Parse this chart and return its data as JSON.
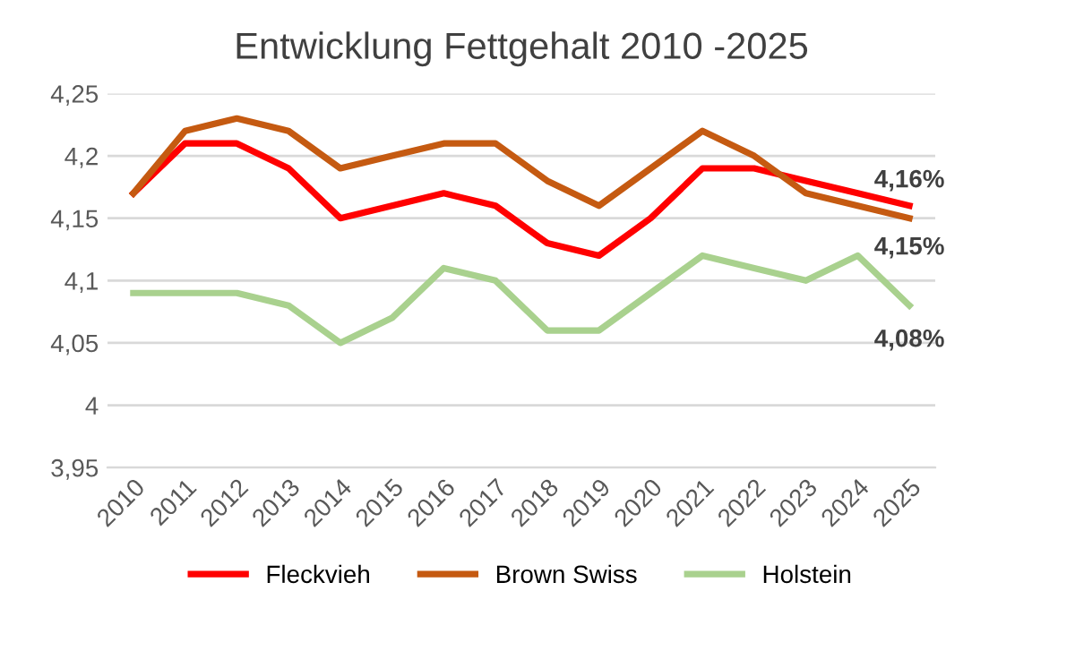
{
  "chart_data": {
    "type": "line",
    "title": "Entwicklung Fettgehalt 2010 -2025",
    "categories": [
      "2010",
      "2011",
      "2012",
      "2013",
      "2014",
      "2015",
      "2016",
      "2017",
      "2018",
      "2019",
      "2020",
      "2021",
      "2022",
      "2023",
      "2024",
      "2025"
    ],
    "series": [
      {
        "name": "Fleckvieh",
        "color": "#ff0000",
        "values": [
          4.17,
          4.21,
          4.21,
          4.19,
          4.15,
          4.16,
          4.17,
          4.16,
          4.13,
          4.12,
          4.15,
          4.19,
          4.19,
          4.18,
          4.17,
          4.16
        ]
      },
      {
        "name": "Brown Swiss",
        "color": "#c55a11",
        "values": [
          4.17,
          4.22,
          4.23,
          4.22,
          4.19,
          4.2,
          4.21,
          4.21,
          4.18,
          4.16,
          4.19,
          4.22,
          4.2,
          4.17,
          4.16,
          4.15
        ]
      },
      {
        "name": "Holstein",
        "color": "#a9d18e",
        "values": [
          4.09,
          4.09,
          4.09,
          4.08,
          4.05,
          4.07,
          4.11,
          4.1,
          4.06,
          4.06,
          4.09,
          4.12,
          4.11,
          4.1,
          4.12,
          4.08
        ]
      }
    ],
    "ylim": [
      3.95,
      4.25
    ],
    "yticks": [
      {
        "value": 3.95,
        "label": "3,95"
      },
      {
        "value": 4,
        "label": "4"
      },
      {
        "value": 4.05,
        "label": "4,05"
      },
      {
        "value": 4.1,
        "label": "4,1"
      },
      {
        "value": 4.15,
        "label": "4,15"
      },
      {
        "value": 4.2,
        "label": "4,2"
      },
      {
        "value": 4.25,
        "label": "4,25"
      }
    ],
    "annotations": [
      {
        "text": "4,16%",
        "x": "2025",
        "y": 4.16
      },
      {
        "text": "4,15%",
        "x": "2025",
        "y": 4.15
      },
      {
        "text": "4,08%",
        "x": "2025",
        "y": 4.08
      }
    ],
    "grid": "y",
    "legend": "bottom",
    "marker": "none",
    "line_style": "solid"
  }
}
